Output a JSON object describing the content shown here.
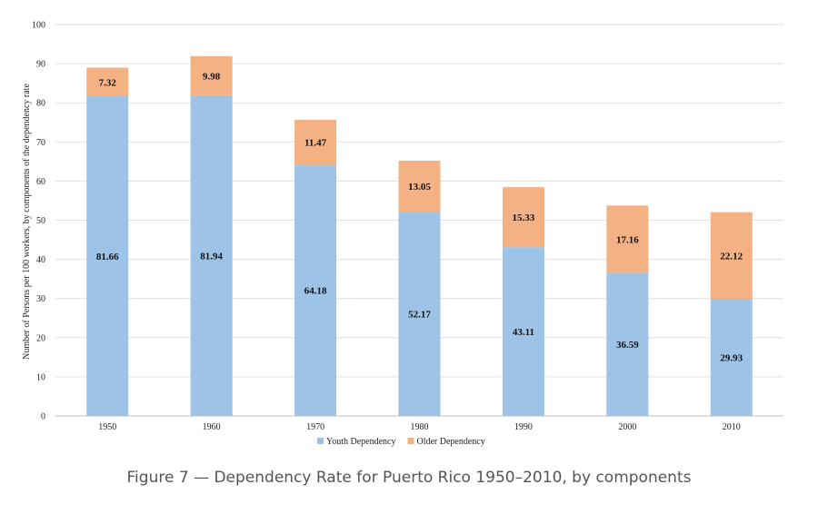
{
  "caption": "Figure 7 — Dependency Rate for Puerto Rico 1950–2010, by components",
  "chart_data": {
    "type": "bar",
    "stacked": true,
    "categories": [
      "1950",
      "1960",
      "1970",
      "1980",
      "1990",
      "2000",
      "2010"
    ],
    "series": [
      {
        "name": "Youth Dependency",
        "color": "#9dc3e6",
        "values": [
          81.66,
          81.94,
          64.18,
          52.17,
          43.11,
          36.59,
          29.93
        ]
      },
      {
        "name": "Older Dependency",
        "color": "#f4b183",
        "values": [
          7.32,
          9.98,
          11.47,
          13.05,
          15.33,
          17.16,
          22.12
        ]
      }
    ],
    "ylabel": "Number of Persons per 100 workers, by components of the dependency rate",
    "xlabel": "",
    "ylim": [
      0,
      100
    ],
    "yticks": [
      0,
      10,
      20,
      30,
      40,
      50,
      60,
      70,
      80,
      90,
      100
    ],
    "grid": true,
    "legend_position": "bottom",
    "data_labels": true
  }
}
